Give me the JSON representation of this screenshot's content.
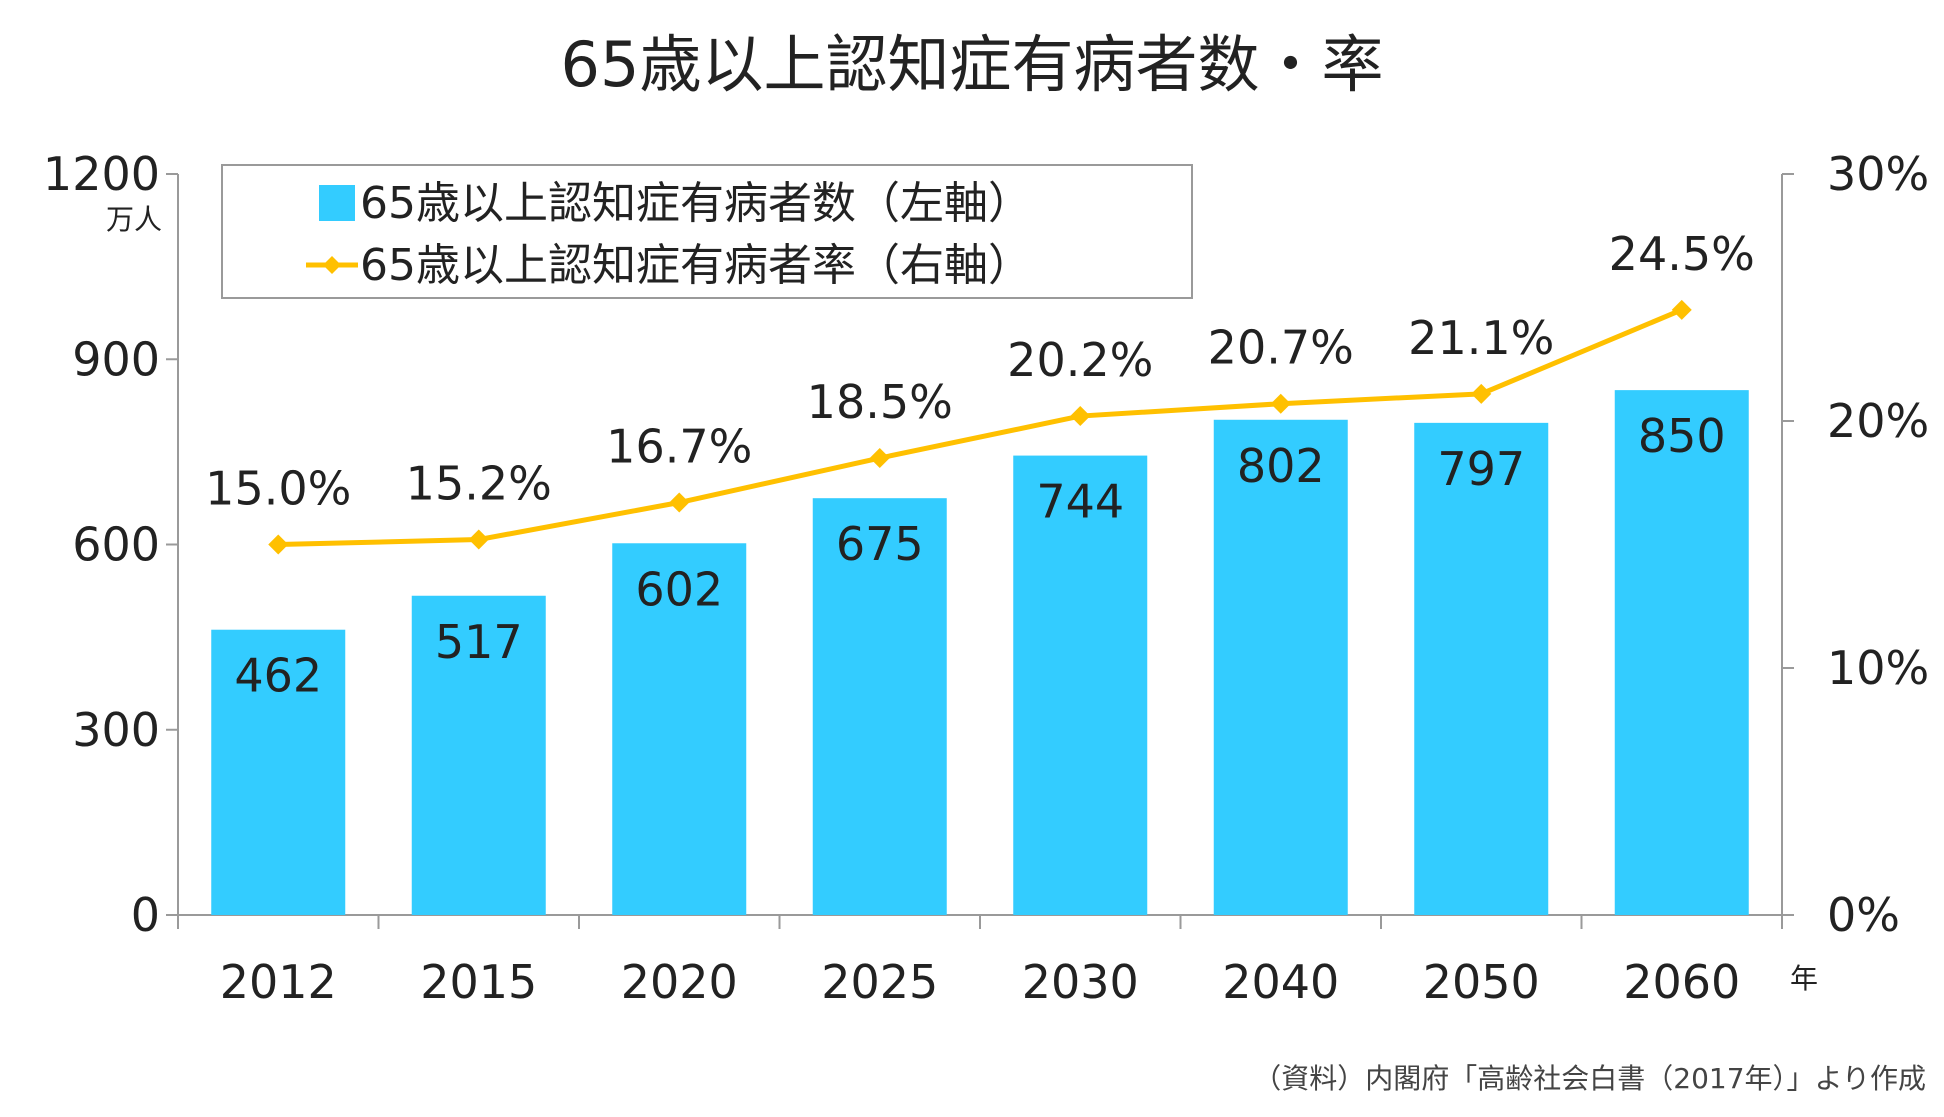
{
  "chart_data": {
    "type": "bar",
    "title": "65歳以上認知症有病者数・率",
    "categories": [
      "2012",
      "2015",
      "2020",
      "2025",
      "2030",
      "2040",
      "2050",
      "2060"
    ],
    "series": [
      {
        "name": "65歳以上認知症有病者数（左軸）",
        "type": "bar",
        "axis": "left",
        "color": "#33CCFF",
        "values": [
          462,
          517,
          602,
          675,
          744,
          802,
          797,
          850
        ],
        "labels": [
          "462",
          "517",
          "602",
          "675",
          "744",
          "802",
          "797",
          "850"
        ]
      },
      {
        "name": "65歳以上認知症有病者率（右軸）",
        "type": "line",
        "axis": "right",
        "color": "#FFC000",
        "values": [
          15.0,
          15.2,
          16.7,
          18.5,
          20.2,
          20.7,
          21.1,
          24.5
        ],
        "labels": [
          "15.0%",
          "15.2%",
          "16.7%",
          "18.5%",
          "20.2%",
          "20.7%",
          "21.1%",
          "24.5%"
        ]
      }
    ],
    "y_left": {
      "ylim": [
        0,
        1200
      ],
      "ticks": [
        "0",
        "300",
        "600",
        "900",
        "1200"
      ],
      "unit": "万人"
    },
    "y_right": {
      "ylim": [
        0,
        30
      ],
      "ticks": [
        "0%",
        "10%",
        "20%",
        "30%"
      ]
    },
    "x_unit": "年",
    "legend": "top-left",
    "grid": false,
    "source": "（資料）内閣府「高齢社会白書（2017年）」より作成"
  }
}
